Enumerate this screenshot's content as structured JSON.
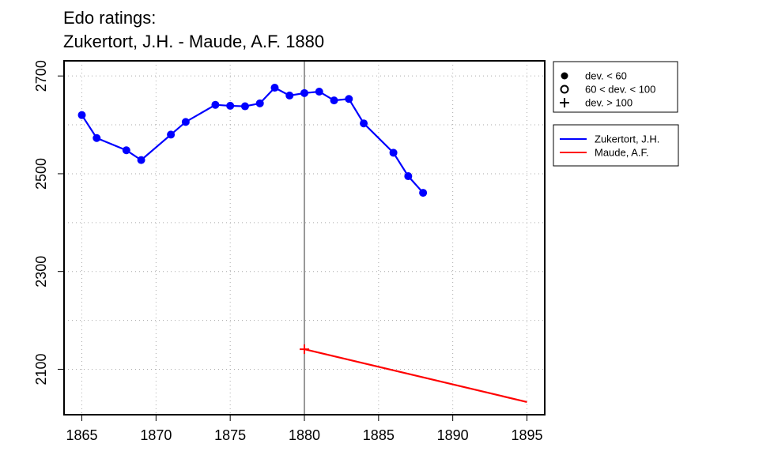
{
  "chart_data": {
    "type": "line",
    "title_line1": "Edo ratings:",
    "title_line2": "Zukertort, J.H. - Maude, A.F. 1880",
    "xlabel": "",
    "ylabel": "",
    "xlim": [
      1863.8,
      1896.2
    ],
    "ylim": [
      2007,
      2731
    ],
    "x_ticks": [
      1865,
      1870,
      1875,
      1880,
      1885,
      1890,
      1895
    ],
    "y_ticks": [
      2100,
      2300,
      2500,
      2700
    ],
    "y_grid": [
      2100,
      2200,
      2300,
      2400,
      2500,
      2600,
      2700
    ],
    "grid": true,
    "marker_line_x": 1880,
    "marker_legend": {
      "items": [
        {
          "symbol": "filled-circle",
          "label": "dev. < 60"
        },
        {
          "symbol": "open-circle",
          "label": "60 < dev. < 100"
        },
        {
          "symbol": "plus",
          "label": "dev. > 100"
        }
      ]
    },
    "series_legend": {
      "items": [
        {
          "label": "Zukertort, J.H.",
          "color": "#0000ff"
        },
        {
          "label": "Maude, A.F.",
          "color": "#ff0000"
        }
      ]
    },
    "series": [
      {
        "name": "Zukertort, J.H.",
        "color": "#0000ff",
        "marker": "filled-circle",
        "x": [
          1865,
          1866,
          1868,
          1869,
          1871,
          1872,
          1874,
          1875,
          1876,
          1877,
          1878,
          1879,
          1880,
          1881,
          1882,
          1883,
          1884,
          1886,
          1887,
          1888
        ],
        "y": [
          2620,
          2573,
          2548,
          2528,
          2580,
          2606,
          2641,
          2639,
          2638,
          2644,
          2676,
          2660,
          2665,
          2668,
          2650,
          2653,
          2603,
          2543,
          2495,
          2461
        ]
      },
      {
        "name": "Maude, A.F.",
        "color": "#ff0000",
        "marker": "plus",
        "marker_points": [
          0
        ],
        "x": [
          1880,
          1895
        ],
        "y": [
          2141,
          2033
        ]
      }
    ]
  }
}
